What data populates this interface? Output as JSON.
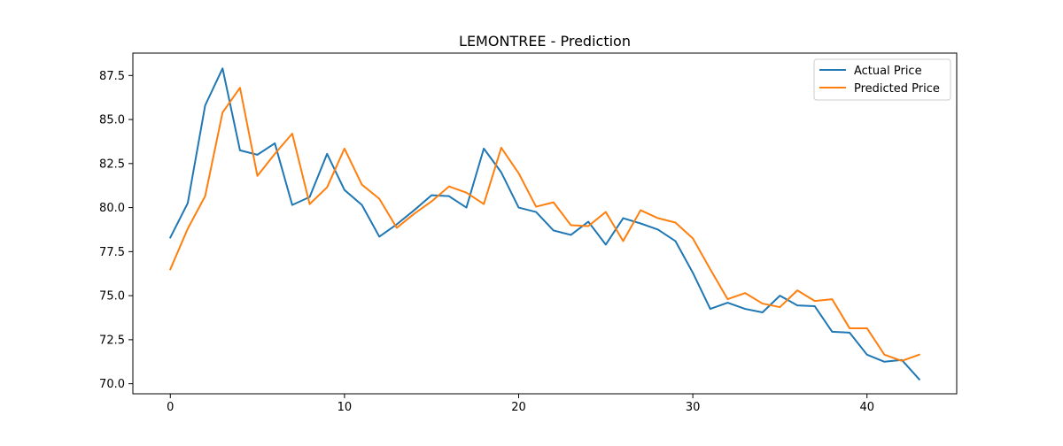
{
  "chart_data": {
    "type": "line",
    "title": "LEMONTREE - Prediction",
    "xlabel": "",
    "ylabel": "",
    "xlim": [
      -2.15,
      45.15
    ],
    "ylim": [
      69.43,
      88.77
    ],
    "xticks": [
      0,
      10,
      20,
      30,
      40
    ],
    "xtick_labels": [
      "0",
      "10",
      "20",
      "30",
      "40"
    ],
    "yticks": [
      70.0,
      72.5,
      75.0,
      77.5,
      80.0,
      82.5,
      85.0,
      87.5
    ],
    "ytick_labels": [
      "70.0",
      "72.5",
      "75.0",
      "77.5",
      "80.0",
      "82.5",
      "85.0",
      "87.5"
    ],
    "grid": false,
    "legend_position": "top-right",
    "x": [
      0,
      1,
      2,
      3,
      4,
      5,
      6,
      7,
      8,
      9,
      10,
      11,
      12,
      13,
      14,
      15,
      16,
      17,
      18,
      19,
      20,
      21,
      22,
      23,
      24,
      25,
      26,
      27,
      28,
      29,
      30,
      31,
      32,
      33,
      34,
      35,
      36,
      37,
      38,
      39,
      40,
      41,
      42,
      43
    ],
    "series": [
      {
        "name": "Actual Price",
        "color": "#1f77b4",
        "values": [
          78.3,
          80.25,
          85.8,
          87.9,
          83.25,
          83.0,
          83.65,
          80.15,
          80.6,
          83.05,
          81.0,
          80.15,
          78.35,
          79.05,
          79.85,
          80.7,
          80.65,
          80.0,
          83.35,
          82.0,
          80.0,
          79.75,
          78.7,
          78.45,
          79.2,
          77.9,
          79.4,
          79.1,
          78.75,
          78.1,
          76.3,
          74.25,
          74.6,
          74.25,
          74.05,
          75.0,
          74.45,
          74.4,
          72.95,
          72.9,
          71.65,
          71.25,
          71.35,
          70.25
        ]
      },
      {
        "name": "Predicted Price",
        "color": "#ff7f0e",
        "values": [
          76.5,
          78.8,
          80.65,
          85.4,
          86.8,
          81.8,
          83.05,
          84.2,
          80.2,
          81.15,
          83.35,
          81.3,
          80.5,
          78.85,
          79.65,
          80.35,
          81.2,
          80.85,
          80.2,
          83.4,
          81.95,
          80.05,
          80.3,
          79.0,
          78.95,
          79.75,
          78.1,
          79.85,
          79.4,
          79.15,
          78.25,
          76.5,
          74.8,
          75.15,
          74.55,
          74.35,
          75.3,
          74.7,
          74.8,
          73.15,
          73.15,
          71.65,
          71.3,
          71.65
        ]
      }
    ]
  }
}
